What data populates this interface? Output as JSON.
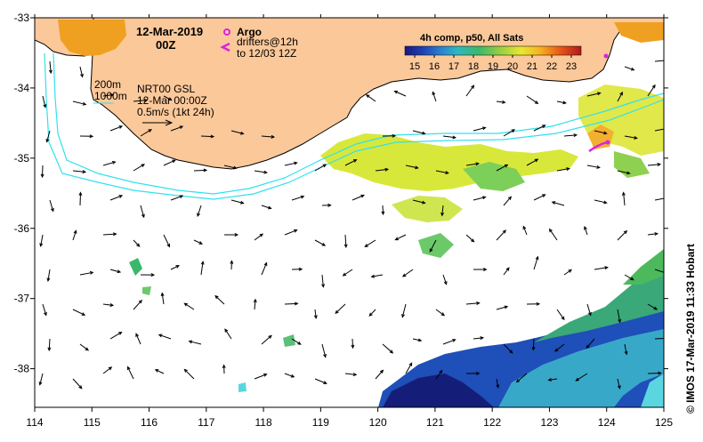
{
  "map": {
    "date_line": "12-Mar-2019",
    "time_line": "00Z",
    "legend": {
      "argo_label": "Argo",
      "drifters_label": "drifters@12h",
      "drifters_to": "to 12/03 12Z",
      "argo_color": "#dd22dd",
      "drifter_color": "#dd22dd"
    },
    "isobaths": [
      "200m",
      "1000m"
    ],
    "product": {
      "name": "NRT00 GSL",
      "time": "12-Mar 00:00Z",
      "scale": "0.5m/s (1kt 24h)"
    },
    "colorbar": {
      "title": "4h comp, p50, All Sats",
      "ticks": [
        "15",
        "16",
        "17",
        "18",
        "19",
        "20",
        "21",
        "22",
        "23"
      ],
      "min": 14.5,
      "max": 23.5
    },
    "credit": "©  IMOS 17-Mar-2019 11:33 Hobart",
    "x_ticks": [
      "114",
      "115",
      "116",
      "117",
      "118",
      "119",
      "120",
      "121",
      "122",
      "123",
      "124",
      "125"
    ],
    "y_ticks": [
      "-33",
      "-34",
      "-35",
      "-36",
      "-37",
      "-38"
    ],
    "lon_range": [
      114,
      125
    ],
    "lat_range": [
      -38.55,
      -33
    ],
    "colors": {
      "land": "#fbc89a",
      "coast": "#000000",
      "isobath": "#33e0ee",
      "arrow": "#000000"
    }
  }
}
